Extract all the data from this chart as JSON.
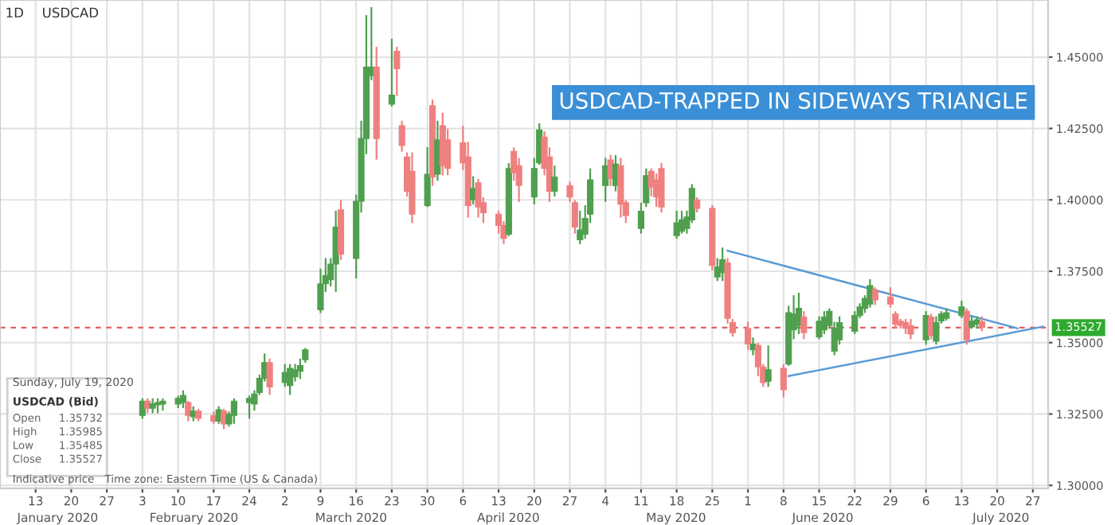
{
  "chart_data": {
    "type": "candlestick",
    "title": "USDCAD-TRAPPED IN SIDEWAYS TRIANGLE",
    "series": [
      {
        "x": [
          "2020-02-03",
          "2020-02-04",
          "2020-02-05",
          "2020-02-06",
          "2020-02-07",
          "2020-02-10",
          "2020-02-11",
          "2020-02-12",
          "2020-02-13",
          "2020-02-14",
          "2020-02-17",
          "2020-02-18",
          "2020-02-19",
          "2020-02-20",
          "2020-02-21",
          "2020-02-24",
          "2020-02-25",
          "2020-02-26",
          "2020-02-27",
          "2020-02-28",
          "2020-03-02",
          "2020-03-03",
          "2020-03-04",
          "2020-03-05",
          "2020-03-06",
          "2020-03-09",
          "2020-03-10",
          "2020-03-11",
          "2020-03-12",
          "2020-03-13",
          "2020-03-16",
          "2020-03-17",
          "2020-03-18",
          "2020-03-19",
          "2020-03-20",
          "2020-03-23",
          "2020-03-24",
          "2020-03-25",
          "2020-03-26",
          "2020-03-27",
          "2020-03-30",
          "2020-03-31",
          "2020-04-01",
          "2020-04-02",
          "2020-04-03",
          "2020-04-06",
          "2020-04-07",
          "2020-04-08",
          "2020-04-09",
          "2020-04-10",
          "2020-04-13",
          "2020-04-14",
          "2020-04-15",
          "2020-04-16",
          "2020-04-17",
          "2020-04-20",
          "2020-04-21",
          "2020-04-22",
          "2020-04-23",
          "2020-04-24",
          "2020-04-27",
          "2020-04-28",
          "2020-04-29",
          "2020-04-30",
          "2020-05-01",
          "2020-05-04",
          "2020-05-05",
          "2020-05-06",
          "2020-05-07",
          "2020-05-08",
          "2020-05-11",
          "2020-05-12",
          "2020-05-13",
          "2020-05-14",
          "2020-05-15",
          "2020-05-18",
          "2020-05-19",
          "2020-05-20",
          "2020-05-21",
          "2020-05-22",
          "2020-05-25",
          "2020-05-26",
          "2020-05-27",
          "2020-05-28",
          "2020-05-29",
          "2020-06-01",
          "2020-06-02",
          "2020-06-03",
          "2020-06-04",
          "2020-06-05",
          "2020-06-08",
          "2020-06-09",
          "2020-06-10",
          "2020-06-11",
          "2020-06-12",
          "2020-06-15",
          "2020-06-16",
          "2020-06-17",
          "2020-06-18",
          "2020-06-19",
          "2020-06-22",
          "2020-06-23",
          "2020-06-24",
          "2020-06-25",
          "2020-06-26",
          "2020-06-29",
          "2020-06-30",
          "2020-07-01",
          "2020-07-02",
          "2020-07-03",
          "2020-07-06",
          "2020-07-07",
          "2020-07-08",
          "2020-07-09",
          "2020-07-10",
          "2020-07-13",
          "2020-07-14",
          "2020-07-15",
          "2020-07-16",
          "2020-07-17"
        ],
        "ohlc": [
          [
            1.3245,
            1.3302,
            1.3237,
            1.3295
          ],
          [
            1.3295,
            1.3302,
            1.3256,
            1.327
          ],
          [
            1.327,
            1.3302,
            1.3256,
            1.3285
          ],
          [
            1.3282,
            1.3302,
            1.3256,
            1.329
          ],
          [
            1.3285,
            1.3302,
            1.3265,
            1.3295
          ],
          [
            1.3285,
            1.3311,
            1.3274,
            1.3305
          ],
          [
            1.329,
            1.333,
            1.3274,
            1.3315
          ],
          [
            1.329,
            1.3293,
            1.3228,
            1.3245
          ],
          [
            1.324,
            1.3274,
            1.3228,
            1.326
          ],
          [
            1.326,
            1.3265,
            1.3228,
            1.3235
          ],
          [
            1.3245,
            1.3256,
            1.3219,
            1.3225
          ],
          [
            1.3225,
            1.3274,
            1.3219,
            1.3265
          ],
          [
            1.326,
            1.3265,
            1.32,
            1.3215
          ],
          [
            1.3215,
            1.3256,
            1.3209,
            1.325
          ],
          [
            1.3245,
            1.3302,
            1.3219,
            1.3295
          ],
          [
            1.329,
            1.3311,
            1.3237,
            1.3305
          ],
          [
            1.3285,
            1.333,
            1.3265,
            1.332
          ],
          [
            1.3325,
            1.3385,
            1.332,
            1.3375
          ],
          [
            1.3375,
            1.3459,
            1.3367,
            1.343
          ],
          [
            1.343,
            1.3441,
            1.332,
            1.3345
          ],
          [
            1.336,
            1.3422,
            1.3348,
            1.3395
          ],
          [
            1.335,
            1.3422,
            1.332,
            1.341
          ],
          [
            1.338,
            1.3422,
            1.3367,
            1.3405
          ],
          [
            1.34,
            1.3441,
            1.3376,
            1.342
          ],
          [
            1.344,
            1.3478,
            1.3433,
            1.3475
          ],
          [
            1.3615,
            1.3756,
            1.3607,
            1.3706
          ],
          [
            1.3706,
            1.3793,
            1.3681,
            1.3735
          ],
          [
            1.372,
            1.3793,
            1.37,
            1.3775
          ],
          [
            1.3775,
            1.3959,
            1.3681,
            1.3905
          ],
          [
            1.3965,
            1.3996,
            1.3793,
            1.381
          ],
          [
            1.3795,
            1.4015,
            1.3728,
            1.3995
          ],
          [
            1.3995,
            1.4274,
            1.3959,
            1.4215
          ],
          [
            1.4215,
            1.4644,
            1.4163,
            1.4465
          ],
          [
            1.4435,
            1.4672,
            1.4422,
            1.4465
          ],
          [
            1.4465,
            1.4533,
            1.4144,
            1.4215
          ],
          [
            1.4335,
            1.4561,
            1.433,
            1.4367
          ],
          [
            1.452,
            1.4533,
            1.4367,
            1.4459
          ],
          [
            1.426,
            1.4274,
            1.4172,
            1.419
          ],
          [
            1.415,
            1.4163,
            1.4015,
            1.403
          ],
          [
            1.41,
            1.4163,
            1.3922,
            1.395
          ],
          [
            1.398,
            1.4181,
            1.3978,
            1.409
          ],
          [
            1.433,
            1.4348,
            1.4052,
            1.408
          ],
          [
            1.409,
            1.4274,
            1.407,
            1.421
          ],
          [
            1.426,
            1.4302,
            1.4089,
            1.412
          ],
          [
            1.421,
            1.4246,
            1.4089,
            1.411
          ],
          [
            1.42,
            1.4256,
            1.4107,
            1.413
          ],
          [
            1.415,
            1.42,
            1.3941,
            1.398
          ],
          [
            1.4,
            1.408,
            1.3987,
            1.404
          ],
          [
            1.406,
            1.407,
            1.3941,
            1.3975
          ],
          [
            1.399,
            1.4006,
            1.3922,
            1.3955
          ],
          [
            1.395,
            1.3959,
            1.3885,
            1.391
          ],
          [
            1.391,
            1.3922,
            1.3848,
            1.3865
          ],
          [
            1.388,
            1.4126,
            1.3876,
            1.411
          ],
          [
            1.417,
            1.4181,
            1.407,
            1.4095
          ],
          [
            1.412,
            1.4144,
            1.3996,
            1.405
          ],
          [
            1.401,
            1.4144,
            1.3987,
            1.411
          ],
          [
            1.413,
            1.4265,
            1.4126,
            1.4245
          ],
          [
            1.422,
            1.4237,
            1.4089,
            1.411
          ],
          [
            1.415,
            1.4181,
            1.3996,
            1.403
          ],
          [
            1.403,
            1.4117,
            1.4015,
            1.408
          ],
          [
            1.405,
            1.4061,
            1.3996,
            1.401
          ],
          [
            1.399,
            1.3996,
            1.3885,
            1.3905
          ],
          [
            1.386,
            1.3959,
            1.3848,
            1.3895
          ],
          [
            1.388,
            1.3978,
            1.3867,
            1.3935
          ],
          [
            1.395,
            1.4107,
            1.3922,
            1.407
          ],
          [
            1.405,
            1.4144,
            1.3996,
            1.412
          ],
          [
            1.414,
            1.4154,
            1.4052,
            1.4075
          ],
          [
            1.405,
            1.4154,
            1.4033,
            1.4125
          ],
          [
            1.412,
            1.4144,
            1.3941,
            1.3985
          ],
          [
            1.399,
            1.3996,
            1.3922,
            1.3945
          ],
          [
            1.39,
            1.3987,
            1.3885,
            1.396
          ],
          [
            1.399,
            1.4107,
            1.3978,
            1.4085
          ],
          [
            1.41,
            1.4107,
            1.4015,
            1.4045
          ],
          [
            1.407,
            1.4089,
            1.3978,
            1.401
          ],
          [
            1.411,
            1.4126,
            1.3959,
            1.3975
          ],
          [
            1.3875,
            1.3959,
            1.3867,
            1.392
          ],
          [
            1.389,
            1.3959,
            1.3885,
            1.393
          ],
          [
            1.39,
            1.3959,
            1.3885,
            1.394
          ],
          [
            1.393,
            1.4052,
            1.3922,
            1.404
          ],
          [
            1.4,
            1.4006,
            1.3959,
            1.397
          ],
          [
            1.397,
            1.3978,
            1.3756,
            1.377
          ],
          [
            1.373,
            1.3793,
            1.3719,
            1.3765
          ],
          [
            1.3745,
            1.383,
            1.3719,
            1.379
          ],
          [
            1.378,
            1.3793,
            1.357,
            1.3585
          ],
          [
            1.357,
            1.358,
            1.3524,
            1.3535
          ],
          [
            1.355,
            1.357,
            1.3478,
            1.3495
          ],
          [
            1.3475,
            1.3515,
            1.3459,
            1.3495
          ],
          [
            1.349,
            1.3496,
            1.3385,
            1.3415
          ],
          [
            1.3415,
            1.3422,
            1.3348,
            1.336
          ],
          [
            1.3365,
            1.3487,
            1.3348,
            1.3405
          ],
          [
            1.341,
            1.3422,
            1.3311,
            1.3335
          ],
          [
            1.3425,
            1.3626,
            1.3422,
            1.3605
          ],
          [
            1.3545,
            1.3663,
            1.3515,
            1.36
          ],
          [
            1.356,
            1.3672,
            1.3533,
            1.362
          ],
          [
            1.359,
            1.3607,
            1.3515,
            1.3535
          ],
          [
            1.352,
            1.3589,
            1.3515,
            1.3575
          ],
          [
            1.3545,
            1.3607,
            1.3533,
            1.359
          ],
          [
            1.356,
            1.3617,
            1.3552,
            1.361
          ],
          [
            1.347,
            1.357,
            1.3459,
            1.355
          ],
          [
            1.351,
            1.3589,
            1.3496,
            1.357
          ],
          [
            1.354,
            1.3607,
            1.3533,
            1.3595
          ],
          [
            1.3595,
            1.3635,
            1.3589,
            1.3625
          ],
          [
            1.362,
            1.3663,
            1.3607,
            1.3655
          ],
          [
            1.3635,
            1.3719,
            1.3626,
            1.37
          ],
          [
            1.3685,
            1.3691,
            1.3635,
            1.365
          ],
          [
            1.366,
            1.3691,
            1.3626,
            1.3635
          ],
          [
            1.36,
            1.3607,
            1.3552,
            1.3565
          ],
          [
            1.3575,
            1.358,
            1.3552,
            1.356
          ],
          [
            1.357,
            1.358,
            1.3533,
            1.355
          ],
          [
            1.356,
            1.358,
            1.3515,
            1.353
          ],
          [
            1.351,
            1.3607,
            1.3496,
            1.3595
          ],
          [
            1.359,
            1.3598,
            1.3515,
            1.3525
          ],
          [
            1.3505,
            1.3589,
            1.3496,
            1.357
          ],
          [
            1.3575,
            1.3607,
            1.357,
            1.36
          ],
          [
            1.3585,
            1.3617,
            1.358,
            1.3605
          ],
          [
            1.3595,
            1.3644,
            1.3589,
            1.3625
          ],
          [
            1.361,
            1.3617,
            1.3496,
            1.351
          ],
          [
            1.3555,
            1.3589,
            1.3552,
            1.3575
          ],
          [
            1.3565,
            1.3589,
            1.3552,
            1.358
          ],
          [
            1.3573,
            1.3589,
            1.3543,
            1.3553
          ]
        ],
        "colors": [
          "#4f9f4f",
          "#ef8080",
          "#4f9f4f",
          "#4f9f4f",
          "#4f9f4f",
          "#4f9f4f",
          "#4f9f4f",
          "#ef8080",
          "#4f9f4f",
          "#ef8080",
          "#ef8080",
          "#4f9f4f",
          "#ef8080",
          "#4f9f4f",
          "#4f9f4f",
          "#4f9f4f",
          "#4f9f4f",
          "#4f9f4f",
          "#4f9f4f",
          "#ef8080",
          "#4f9f4f",
          "#4f9f4f",
          "#4f9f4f",
          "#4f9f4f",
          "#4f9f4f",
          "#4f9f4f",
          "#4f9f4f",
          "#4f9f4f",
          "#4f9f4f",
          "#ef8080",
          "#4f9f4f",
          "#4f9f4f",
          "#4f9f4f",
          "#4f9f4f",
          "#ef8080",
          "#4f9f4f",
          "#ef8080",
          "#ef8080",
          "#ef8080",
          "#ef8080",
          "#4f9f4f",
          "#ef8080",
          "#4f9f4f",
          "#ef8080",
          "#ef8080",
          "#ef8080",
          "#ef8080",
          "#4f9f4f",
          "#ef8080",
          "#ef8080",
          "#ef8080",
          "#ef8080",
          "#4f9f4f",
          "#ef8080",
          "#ef8080",
          "#4f9f4f",
          "#4f9f4f",
          "#ef8080",
          "#ef8080",
          "#4f9f4f",
          "#ef8080",
          "#ef8080",
          "#4f9f4f",
          "#4f9f4f",
          "#4f9f4f",
          "#4f9f4f",
          "#ef8080",
          "#4f9f4f",
          "#ef8080",
          "#ef8080",
          "#4f9f4f",
          "#4f9f4f",
          "#ef8080",
          "#ef8080",
          "#ef8080",
          "#4f9f4f",
          "#4f9f4f",
          "#4f9f4f",
          "#4f9f4f",
          "#ef8080",
          "#ef8080",
          "#4f9f4f",
          "#4f9f4f",
          "#ef8080",
          "#ef8080",
          "#ef8080",
          "#4f9f4f",
          "#ef8080",
          "#ef8080",
          "#4f9f4f",
          "#ef8080",
          "#4f9f4f",
          "#4f9f4f",
          "#4f9f4f",
          "#ef8080",
          "#4f9f4f",
          "#4f9f4f",
          "#4f9f4f",
          "#4f9f4f",
          "#4f9f4f",
          "#4f9f4f",
          "#4f9f4f",
          "#4f9f4f",
          "#4f9f4f",
          "#ef8080",
          "#ef8080",
          "#ef8080",
          "#ef8080",
          "#ef8080",
          "#ef8080",
          "#4f9f4f",
          "#ef8080",
          "#4f9f4f",
          "#4f9f4f",
          "#4f9f4f",
          "#4f9f4f",
          "#ef8080",
          "#4f9f4f",
          "#4f9f4f",
          "#ef8080"
        ]
      },
      {
        "type": "line",
        "color": "#5b9bd5",
        "x": [
          "2020-05-28",
          "2020-07-24"
        ],
        "values": [
          1.3822,
          1.355
        ]
      },
      {
        "type": "line",
        "color": "#5b9bd5",
        "x": [
          "2020-06-09",
          "2020-07-29"
        ],
        "values": [
          1.3383,
          1.3556
        ]
      }
    ],
    "xlim": [
      "2020-01-06",
      "2020-07-30"
    ],
    "xticks": [
      {
        "value": "2020-01-13",
        "label": "13"
      },
      {
        "value": "2020-01-20",
        "label": "20"
      },
      {
        "value": "2020-01-27",
        "label": "27"
      },
      {
        "value": "2020-02-03",
        "label": "3"
      },
      {
        "value": "2020-02-10",
        "label": "10"
      },
      {
        "value": "2020-02-17",
        "label": "17"
      },
      {
        "value": "2020-02-24",
        "label": "24"
      },
      {
        "value": "2020-03-02",
        "label": "2"
      },
      {
        "value": "2020-03-09",
        "label": "9"
      },
      {
        "value": "2020-03-16",
        "label": "16"
      },
      {
        "value": "2020-03-23",
        "label": "23"
      },
      {
        "value": "2020-03-30",
        "label": "30"
      },
      {
        "value": "2020-04-06",
        "label": "6"
      },
      {
        "value": "2020-04-13",
        "label": "13"
      },
      {
        "value": "2020-04-20",
        "label": "20"
      },
      {
        "value": "2020-04-27",
        "label": "27"
      },
      {
        "value": "2020-05-04",
        "label": "4"
      },
      {
        "value": "2020-05-11",
        "label": "11"
      },
      {
        "value": "2020-05-18",
        "label": "18"
      },
      {
        "value": "2020-05-25",
        "label": "25"
      },
      {
        "value": "2020-06-01",
        "label": "1"
      },
      {
        "value": "2020-06-08",
        "label": "8"
      },
      {
        "value": "2020-06-15",
        "label": "15"
      },
      {
        "value": "2020-06-22",
        "label": "22"
      },
      {
        "value": "2020-06-29",
        "label": "29"
      },
      {
        "value": "2020-07-06",
        "label": "6"
      },
      {
        "value": "2020-07-13",
        "label": "13"
      },
      {
        "value": "2020-07-20",
        "label": "20"
      },
      {
        "value": "2020-07-27",
        "label": "27"
      }
    ],
    "ylim": [
      1.299,
      1.47
    ],
    "yticks": [
      {
        "value": 1.3,
        "label": "1.30000"
      },
      {
        "value": 1.325,
        "label": "1.32500"
      },
      {
        "value": 1.35,
        "label": "1.35000"
      },
      {
        "value": 1.375,
        "label": "1.37500"
      },
      {
        "value": 1.4,
        "label": "1.40000"
      },
      {
        "value": 1.425,
        "label": "1.42500"
      },
      {
        "value": 1.45,
        "label": "1.45000"
      }
    ],
    "grid": true,
    "ref_lines": [
      {
        "axis": "y",
        "value": 1.35527,
        "label": "1.35527",
        "color": "#e06060",
        "line_style": "dashed"
      }
    ],
    "annotations": [
      "1D",
      "USDCAD",
      "Sunday, July 19, 2020",
      "USDCAD (Bid)",
      "Open",
      "1.35732",
      "High",
      "1.35985",
      "Low",
      "1.35485",
      "Close",
      "1.35527",
      "Indicative price",
      "Time zone: Eastern Time (US & Canada)",
      "January 2020",
      "February 2020",
      "March 2020",
      "April 2020",
      "May 2020",
      "June 2020",
      "July 2020"
    ]
  }
}
